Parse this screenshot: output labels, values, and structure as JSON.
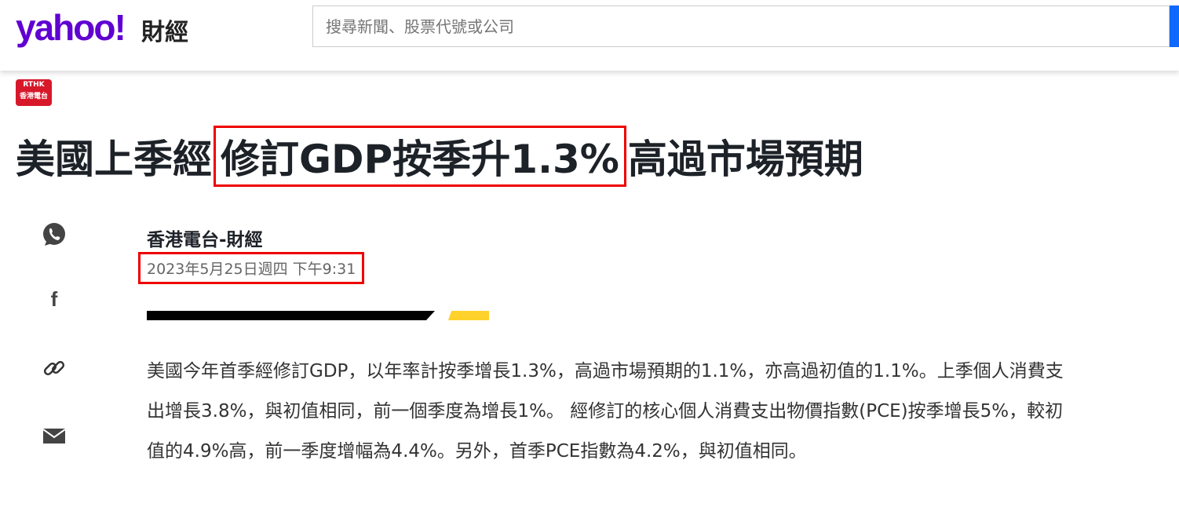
{
  "header": {
    "logo": "yahoo!",
    "logo_sub": "財經",
    "search_placeholder": "搜尋新聞、股票代號或公司"
  },
  "source_logo": {
    "line1": "RTHK",
    "line2": "香港電台"
  },
  "article": {
    "title_before": "美國上季經",
    "title_highlight": "修訂GDP按季升1.3%",
    "title_after": "高過市場預期",
    "author": "香港電台-財經",
    "date": "2023年5月25日週四 下午9:31",
    "body": "美國今年首季經修訂GDP，以年率計按季增長1.3%，高過市場預期的1.1%，亦高過初值的1.1%。上季個人消費支出增長3.8%，與初值相同，前一個季度為增長1%。 經修訂的核心個人消費支出物價指數(PCE)按季增長5%，較初值的4.9%高，前一季度增幅為4.4%。另外，首季PCE指數為4.2%，與初值相同。"
  },
  "share": [
    "whatsapp-icon",
    "facebook-icon",
    "link-icon",
    "mail-icon"
  ],
  "colors": {
    "brand": "#6001d2",
    "highlight_box": "#e00000",
    "accent_yellow": "#ffd12b"
  }
}
